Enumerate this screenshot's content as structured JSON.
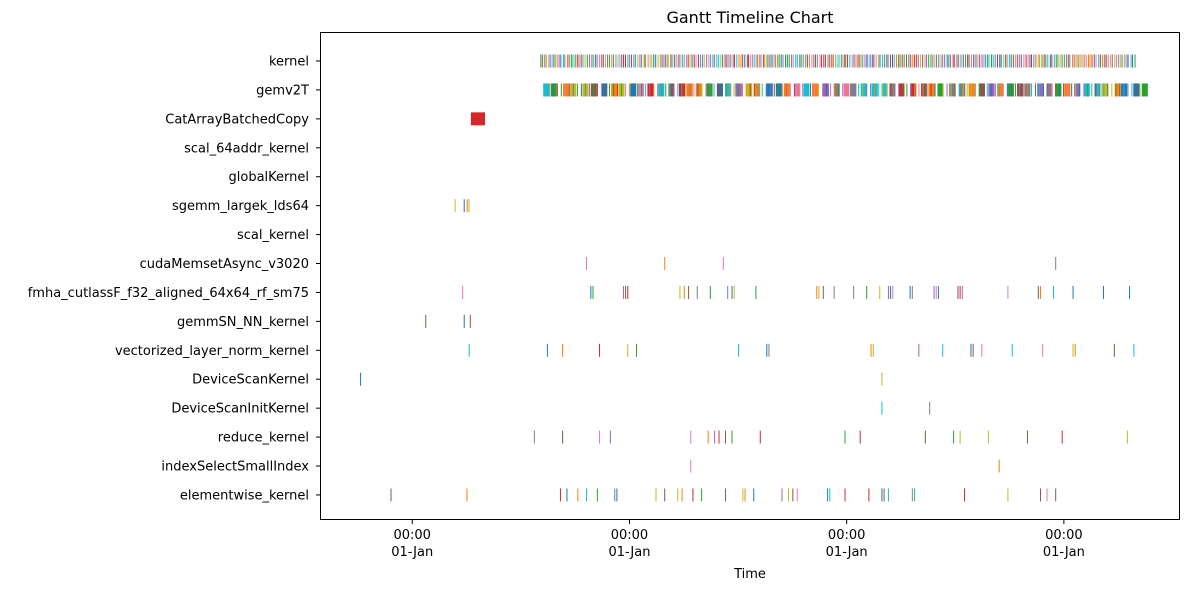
{
  "chart_data": {
    "type": "gantt",
    "title": "Gantt Timeline Chart",
    "xlabel": "Time",
    "xlim": [
      -0.42,
      3.53
    ],
    "x_ticks": [
      {
        "value": 0,
        "line1": "00:00",
        "line2": "01-Jan"
      },
      {
        "value": 1,
        "line1": "00:00",
        "line2": "01-Jan"
      },
      {
        "value": 2,
        "line1": "00:00",
        "line2": "01-Jan"
      },
      {
        "value": 3,
        "line1": "00:00",
        "line2": "01-Jan"
      }
    ],
    "palette": [
      "#1f77b4",
      "#ff7f0e",
      "#2ca02c",
      "#d62728",
      "#9467bd",
      "#8c564b",
      "#e377c2",
      "#7f7f7f",
      "#bcbd22",
      "#17becf"
    ],
    "categories": [
      "kernel",
      "gemv2T",
      "CatArrayBatchedCopy",
      "scal_64addr_kernel",
      "globalKernel",
      "sgemm_largek_lds64",
      "scal_kernel",
      "cudaMemsetAsync_v3020",
      "fmha_cutlassF_f32_aligned_64x64_rf_sm75",
      "gemmSN_NN_kernel",
      "vectorized_layer_norm_kernel",
      "DeviceScanKernel",
      "DeviceScanInitKernel",
      "reduce_kernel",
      "indexSelectSmallIndex",
      "elementwise_kernel"
    ],
    "events": {
      "kernel": {
        "dense": true,
        "start": 0.59,
        "end": 3.33,
        "step": 0.0093,
        "width": 0.003
      },
      "gemv2T": {
        "dense": true,
        "start": 0.6,
        "end": 3.36,
        "step": 0.0445,
        "width": 0.028,
        "thin_step": 0.0185
      },
      "CatArrayBatchedCopy": [
        [
          0.27,
          0.065,
          "#d62728"
        ]
      ],
      "scal_64addr_kernel": [],
      "globalKernel": [],
      "sgemm_largek_lds64": [
        [
          0.195,
          0.004,
          "#bcbd22"
        ],
        [
          0.237,
          0.004,
          "#1f77b4"
        ],
        [
          0.251,
          0.004,
          "#ff7f0e"
        ],
        [
          0.259,
          0.004,
          "#bcbd22"
        ]
      ],
      "scal_kernel": [],
      "cudaMemsetAsync_v3020": [
        [
          0.8,
          0.004,
          "#e377c2"
        ],
        [
          1.16,
          0.004,
          "#ff7f0e"
        ],
        [
          1.43,
          0.004,
          "#e377c2"
        ],
        [
          2.96,
          0.004,
          "#7f7f7f"
        ]
      ],
      "fmha_cutlassF_f32_aligned_64x64_rf_sm75": [
        [
          0.23,
          0.004,
          "#e377c2"
        ],
        [
          0.82,
          0.004,
          "#1f77b4"
        ],
        [
          0.83,
          0.004,
          "#2ca02c"
        ],
        [
          0.97,
          0.004,
          "#9467bd"
        ],
        [
          0.98,
          0.004,
          "#8c564b"
        ],
        [
          0.99,
          0.004,
          "#d62728"
        ],
        [
          1.23,
          0.004,
          "#bcbd22"
        ],
        [
          1.25,
          0.004,
          "#ff7f0e"
        ],
        [
          1.27,
          0.004,
          "#8c564b"
        ],
        [
          1.31,
          0.004,
          "#7f7f7f"
        ],
        [
          1.37,
          0.004,
          "#2ca02c"
        ],
        [
          1.45,
          0.004,
          "#9467bd"
        ],
        [
          1.47,
          0.004,
          "#1f77b4"
        ],
        [
          1.48,
          0.004,
          "#bcbd22"
        ],
        [
          1.58,
          0.004,
          "#2ca02c"
        ],
        [
          1.86,
          0.004,
          "#ff7f0e"
        ],
        [
          1.87,
          0.004,
          "#bcbd22"
        ],
        [
          1.89,
          0.004,
          "#8c564b"
        ],
        [
          1.94,
          0.004,
          "#7f7f7f"
        ],
        [
          2.03,
          0.004,
          "#7f7f7f"
        ],
        [
          2.09,
          0.004,
          "#2ca02c"
        ],
        [
          2.15,
          0.004,
          "#bcbd22"
        ],
        [
          2.19,
          0.004,
          "#9467bd"
        ],
        [
          2.2,
          0.004,
          "#1f77b4"
        ],
        [
          2.21,
          0.004,
          "#e377c2"
        ],
        [
          2.29,
          0.004,
          "#1f77b4"
        ],
        [
          2.3,
          0.004,
          "#7f7f7f"
        ],
        [
          2.4,
          0.004,
          "#9467bd"
        ],
        [
          2.41,
          0.004,
          "#e377c2"
        ],
        [
          2.42,
          0.004,
          "#1f77b4"
        ],
        [
          2.51,
          0.004,
          "#8c564b"
        ],
        [
          2.52,
          0.004,
          "#d62728"
        ],
        [
          2.53,
          0.004,
          "#9467bd"
        ],
        [
          2.74,
          0.004,
          "#e377c2"
        ],
        [
          2.88,
          0.004,
          "#8c564b"
        ],
        [
          2.89,
          0.004,
          "#ff7f0e"
        ],
        [
          2.95,
          0.004,
          "#17becf"
        ],
        [
          3.04,
          0.004,
          "#1f77b4"
        ],
        [
          3.18,
          0.004,
          "#1f77b4"
        ],
        [
          3.3,
          0.004,
          "#1f77b4"
        ]
      ],
      "gemmSN_NN_kernel": [
        [
          0.06,
          0.004,
          "#8c564b"
        ],
        [
          0.237,
          0.004,
          "#1f77b4"
        ],
        [
          0.265,
          0.004,
          "#8c564b"
        ]
      ],
      "vectorized_layer_norm_kernel": [
        [
          0.26,
          0.004,
          "#17becf"
        ],
        [
          0.62,
          0.004,
          "#1f77b4"
        ],
        [
          0.69,
          0.004,
          "#ff7f0e"
        ],
        [
          0.86,
          0.004,
          "#d62728"
        ],
        [
          0.99,
          0.004,
          "#bcbd22"
        ],
        [
          1.03,
          0.004,
          "#2ca02c"
        ],
        [
          1.5,
          0.004,
          "#17becf"
        ],
        [
          1.63,
          0.004,
          "#1f77b4"
        ],
        [
          1.64,
          0.004,
          "#7f7f7f"
        ],
        [
          2.11,
          0.004,
          "#ff7f0e"
        ],
        [
          2.12,
          0.004,
          "#bcbd22"
        ],
        [
          2.33,
          0.004,
          "#9467bd"
        ],
        [
          2.44,
          0.004,
          "#17becf"
        ],
        [
          2.57,
          0.004,
          "#1f77b4"
        ],
        [
          2.58,
          0.004,
          "#8c564b"
        ],
        [
          2.62,
          0.004,
          "#e377c2"
        ],
        [
          2.76,
          0.004,
          "#17becf"
        ],
        [
          2.9,
          0.004,
          "#e377c2"
        ],
        [
          3.04,
          0.004,
          "#bcbd22"
        ],
        [
          3.05,
          0.004,
          "#ff7f0e"
        ],
        [
          3.23,
          0.004,
          "#8c564b"
        ],
        [
          3.32,
          0.004,
          "#17becf"
        ]
      ],
      "DeviceScanKernel": [
        [
          -0.24,
          0.004,
          "#1f77b4"
        ],
        [
          2.16,
          0.004,
          "#bcbd22"
        ]
      ],
      "DeviceScanInitKernel": [
        [
          2.16,
          0.004,
          "#17becf"
        ],
        [
          2.38,
          0.004,
          "#7f7f7f"
        ]
      ],
      "reduce_kernel": [
        [
          0.56,
          0.004,
          "#7f7f7f"
        ],
        [
          0.69,
          0.004,
          "#8c564b"
        ],
        [
          0.86,
          0.004,
          "#e377c2"
        ],
        [
          0.91,
          0.004,
          "#9467bd"
        ],
        [
          1.28,
          0.004,
          "#e377c2"
        ],
        [
          1.36,
          0.004,
          "#ff7f0e"
        ],
        [
          1.39,
          0.004,
          "#9467bd"
        ],
        [
          1.41,
          0.004,
          "#d62728"
        ],
        [
          1.44,
          0.004,
          "#8c564b"
        ],
        [
          1.47,
          0.004,
          "#2ca02c"
        ],
        [
          1.6,
          0.004,
          "#d62728"
        ],
        [
          1.99,
          0.004,
          "#2ca02c"
        ],
        [
          2.06,
          0.004,
          "#d62728"
        ],
        [
          2.36,
          0.004,
          "#8c564b"
        ],
        [
          2.49,
          0.004,
          "#2ca02c"
        ],
        [
          2.52,
          0.004,
          "#bcbd22"
        ],
        [
          2.65,
          0.004,
          "#bcbd22"
        ],
        [
          2.83,
          0.004,
          "#8c564b"
        ],
        [
          2.99,
          0.004,
          "#d62728"
        ],
        [
          3.29,
          0.004,
          "#bcbd22"
        ]
      ],
      "indexSelectSmallIndex": [
        [
          1.28,
          0.004,
          "#e377c2"
        ],
        [
          2.7,
          0.004,
          "#ff7f0e"
        ]
      ],
      "elementwise_kernel": [
        [
          -0.1,
          0.004,
          "#8c564b"
        ],
        [
          0.25,
          0.004,
          "#ff7f0e"
        ],
        [
          0.68,
          0.004,
          "#d62728"
        ],
        [
          0.71,
          0.004,
          "#1f77b4"
        ],
        [
          0.76,
          0.004,
          "#ff7f0e"
        ],
        [
          0.8,
          0.004,
          "#17becf"
        ],
        [
          0.85,
          0.004,
          "#2ca02c"
        ],
        [
          0.93,
          0.004,
          "#7f7f7f"
        ],
        [
          0.94,
          0.004,
          "#1f77b4"
        ],
        [
          1.12,
          0.004,
          "#bcbd22"
        ],
        [
          1.16,
          0.004,
          "#8c564b"
        ],
        [
          1.22,
          0.004,
          "#bcbd22"
        ],
        [
          1.24,
          0.004,
          "#ff7f0e"
        ],
        [
          1.29,
          0.004,
          "#d62728"
        ],
        [
          1.33,
          0.004,
          "#2ca02c"
        ],
        [
          1.44,
          0.004,
          "#8c564b"
        ],
        [
          1.52,
          0.004,
          "#bcbd22"
        ],
        [
          1.53,
          0.004,
          "#ff7f0e"
        ],
        [
          1.57,
          0.004,
          "#1f77b4"
        ],
        [
          1.7,
          0.004,
          "#9467bd"
        ],
        [
          1.73,
          0.004,
          "#bcbd22"
        ],
        [
          1.75,
          0.004,
          "#8c564b"
        ],
        [
          1.77,
          0.004,
          "#e377c2"
        ],
        [
          1.91,
          0.004,
          "#1f77b4"
        ],
        [
          1.92,
          0.004,
          "#17becf"
        ],
        [
          1.99,
          0.004,
          "#d62728"
        ],
        [
          2.1,
          0.004,
          "#d62728"
        ],
        [
          2.16,
          0.004,
          "#1f77b4"
        ],
        [
          2.17,
          0.004,
          "#8c564b"
        ],
        [
          2.19,
          0.004,
          "#17becf"
        ],
        [
          2.3,
          0.004,
          "#7f7f7f"
        ],
        [
          2.31,
          0.004,
          "#17becf"
        ],
        [
          2.54,
          0.004,
          "#d62728"
        ],
        [
          2.74,
          0.004,
          "#bcbd22"
        ],
        [
          2.89,
          0.004,
          "#8c564b"
        ],
        [
          2.92,
          0.004,
          "#e377c2"
        ],
        [
          2.96,
          0.004,
          "#8c564b"
        ]
      ]
    }
  }
}
